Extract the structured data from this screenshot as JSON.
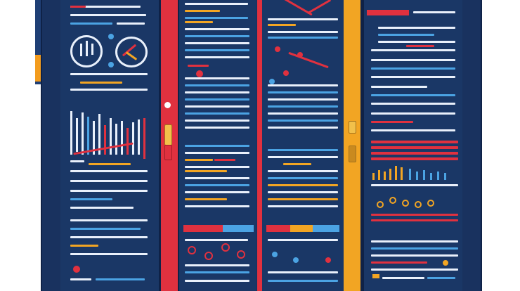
{
  "scene": {
    "description_colors": {
      "cabinet": "#19325f",
      "red": "#e0313f",
      "yellow": "#f2a523",
      "blue": "#4ba3e3",
      "white": "#e9f0fb"
    },
    "icons": [
      "handle-icon",
      "lock-icon",
      "gauge-icon"
    ]
  }
}
